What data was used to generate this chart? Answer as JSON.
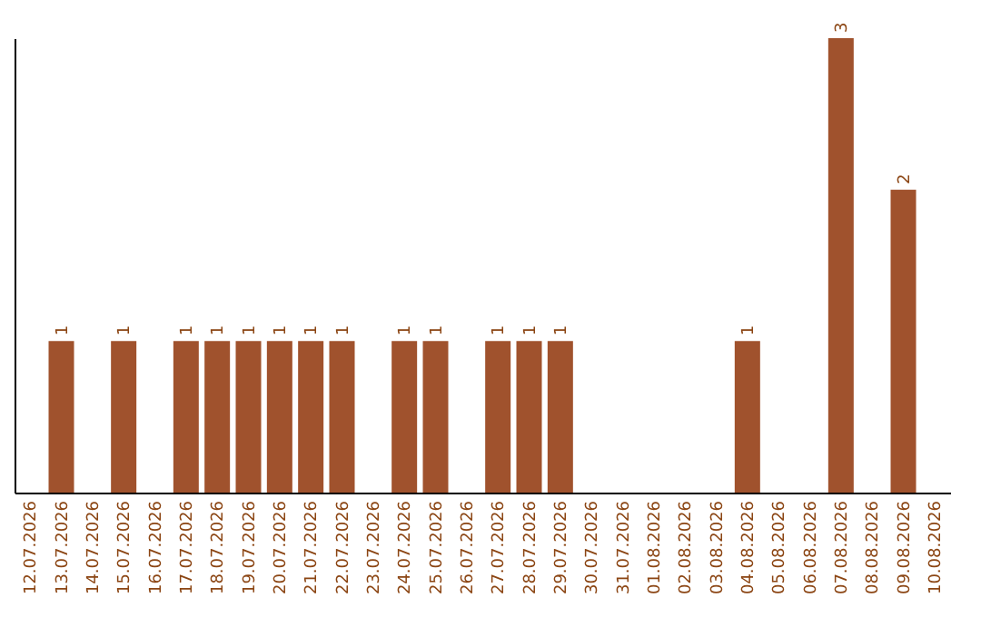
{
  "chart_data": {
    "type": "bar",
    "categories": [
      "12.07.2026",
      "13.07.2026",
      "14.07.2026",
      "15.07.2026",
      "16.07.2026",
      "17.07.2026",
      "18.07.2026",
      "19.07.2026",
      "20.07.2026",
      "21.07.2026",
      "22.07.2026",
      "23.07.2026",
      "24.07.2026",
      "25.07.2026",
      "26.07.2026",
      "27.07.2026",
      "28.07.2026",
      "29.07.2026",
      "30.07.2026",
      "31.07.2026",
      "01.08.2026",
      "02.08.2026",
      "03.08.2026",
      "04.08.2026",
      "05.08.2026",
      "06.08.2026",
      "07.08.2026",
      "08.08.2026",
      "09.08.2026",
      "10.08.2026"
    ],
    "values": [
      0,
      1,
      0,
      1,
      0,
      1,
      1,
      1,
      1,
      1,
      1,
      0,
      1,
      1,
      0,
      1,
      1,
      1,
      0,
      0,
      0,
      0,
      0,
      1,
      0,
      0,
      3,
      0,
      2,
      0
    ],
    "value_labels": [
      null,
      "1",
      null,
      "1",
      null,
      "1",
      "1",
      "1",
      "1",
      "1",
      "1",
      null,
      "1",
      "1",
      null,
      "1",
      "1",
      "1",
      null,
      null,
      null,
      null,
      null,
      "1",
      null,
      null,
      "3",
      null,
      "2",
      null
    ],
    "color": "#a0522d",
    "grid": false
  }
}
